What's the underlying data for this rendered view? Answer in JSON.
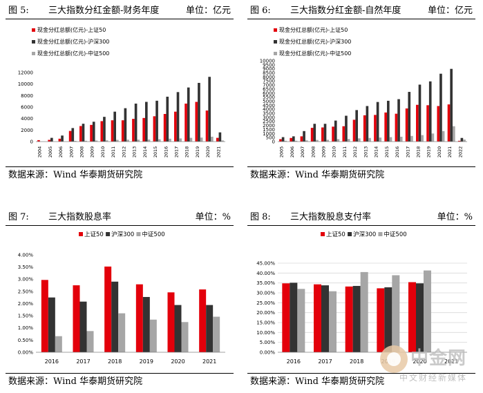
{
  "colors": {
    "s1": "#e3000b",
    "s2": "#333333",
    "s3": "#a6a6a6"
  },
  "source": "数据来源：Wind 华泰期货研究院",
  "watermark": {
    "brand": "中金网",
    "sub": "中文财经新媒体"
  },
  "panels": [
    {
      "fig": "图 5:",
      "title": "三大指数分红金额-财务年度",
      "unit": "单位：亿元",
      "chart_data": {
        "type": "bar",
        "categories": [
          "2004",
          "2005",
          "2006",
          "2007",
          "2008",
          "2009",
          "2010",
          "2011",
          "2012",
          "2013",
          "2014",
          "2015",
          "2016",
          "2017",
          "2018",
          "2019",
          "2020",
          "2021"
        ],
        "series": [
          {
            "name": "现金分红总额(亿元)-上证50",
            "values": [
              250,
              300,
              500,
              1850,
              2700,
              2900,
              3550,
              3700,
              3700,
              3950,
              4100,
              4400,
              4800,
              5200,
              6600,
              6900,
              5400,
              650
            ]
          },
          {
            "name": "现金分红总额(亿元)-沪深300",
            "values": [
              0,
              650,
              1050,
              2350,
              3100,
              3450,
              4300,
              5200,
              5800,
              6600,
              6900,
              7100,
              7800,
              8600,
              9400,
              10200,
              11250,
              1600
            ]
          },
          {
            "name": "现金分红总额(亿元)-中证500",
            "values": [
              0,
              0,
              0,
              120,
              140,
              180,
              220,
              300,
              330,
              330,
              350,
              400,
              500,
              550,
              650,
              700,
              850,
              200
            ]
          }
        ],
        "ylim": [
          0,
          12000
        ],
        "yticks": [
          "0",
          "2000",
          "4000",
          "6000",
          "8000",
          "10000",
          "12000"
        ],
        "legend": "top-left-stacked",
        "grid": false
      }
    },
    {
      "fig": "图 6:",
      "title": "三大指数分红金额-自然年度",
      "unit": "单位：亿元",
      "chart_data": {
        "type": "bar",
        "categories": [
          "2005",
          "2006",
          "2007",
          "2008",
          "2009",
          "2010",
          "2011",
          "2012",
          "2013",
          "2014",
          "2015",
          "2016",
          "2017",
          "2018",
          "2019",
          "2020",
          "2021",
          "2022"
        ],
        "series": [
          {
            "name": "现金分红总额(亿元)-上证50",
            "values": [
              300,
              450,
              650,
              1700,
              1750,
              1850,
              1900,
              2700,
              3250,
              3300,
              3600,
              3450,
              4100,
              4550,
              4500,
              4400,
              4600,
              100
            ]
          },
          {
            "name": "现金分红总额(亿元)-沪深300",
            "values": [
              550,
              650,
              1300,
              2200,
              2200,
              2600,
              3200,
              3900,
              4400,
              4900,
              5050,
              5250,
              6150,
              7050,
              7450,
              8400,
              9000,
              450
            ]
          },
          {
            "name": "现金分红总额(亿元)-中证500",
            "values": [
              100,
              100,
              150,
              200,
              220,
              300,
              320,
              400,
              450,
              500,
              550,
              600,
              700,
              800,
              1000,
              1300,
              1900,
              250
            ]
          }
        ],
        "ylim": [
          0,
          10000
        ],
        "yticks": [
          "0",
          "500",
          "1000",
          "1500",
          "2000",
          "2500",
          "3000",
          "3500",
          "4000",
          "4500",
          "5000",
          "5500",
          "6000",
          "6500",
          "7000",
          "7500",
          "8000",
          "8500",
          "9000",
          "9500",
          "10000"
        ],
        "legend": "top-left-stacked",
        "grid": false
      }
    },
    {
      "fig": "图 7:",
      "title": "三大指数股息率",
      "unit": "单位：%",
      "chart_data": {
        "type": "bar",
        "categories": [
          "2016",
          "2017",
          "2018",
          "2019",
          "2020",
          "2021"
        ],
        "series": [
          {
            "name": "上证50",
            "values": [
              2.97,
              2.75,
              3.52,
              2.79,
              2.46,
              2.58
            ]
          },
          {
            "name": "沪深300",
            "values": [
              2.25,
              2.08,
              2.9,
              2.27,
              1.94,
              1.94
            ]
          },
          {
            "name": "中证500",
            "values": [
              0.66,
              0.87,
              1.6,
              1.34,
              1.24,
              1.46
            ]
          }
        ],
        "ylim": [
          0,
          4.0
        ],
        "yticks": [
          "0.00%",
          "0.50%",
          "1.00%",
          "1.50%",
          "2.00%",
          "2.50%",
          "3.00%",
          "3.50%",
          "4.00%"
        ],
        "legend": "top-center-row",
        "grid": false
      }
    },
    {
      "fig": "图 8:",
      "title": "三大指数股息支付率",
      "unit": "单位：%",
      "chart_data": {
        "type": "bar",
        "categories": [
          "2016",
          "2017",
          "2018",
          "2019",
          "2020",
          "2021"
        ],
        "series": [
          {
            "name": "上证50",
            "values": [
              34.8,
              34.3,
              33.2,
              32.3,
              35.4,
              null
            ]
          },
          {
            "name": "沪深300",
            "values": [
              35.1,
              33.8,
              33.5,
              32.8,
              34.8,
              null
            ]
          },
          {
            "name": "中证500",
            "values": [
              32.0,
              30.8,
              40.5,
              38.9,
              41.3,
              null
            ]
          }
        ],
        "ylim": [
          0,
          45
        ],
        "yticks": [
          "0.00%",
          "5.00%",
          "10.00%",
          "15.00%",
          "20.00%",
          "25.00%",
          "30.00%",
          "35.00%",
          "40.00%",
          "45.00%"
        ],
        "legend": "top-center-row",
        "grid": true
      }
    }
  ]
}
